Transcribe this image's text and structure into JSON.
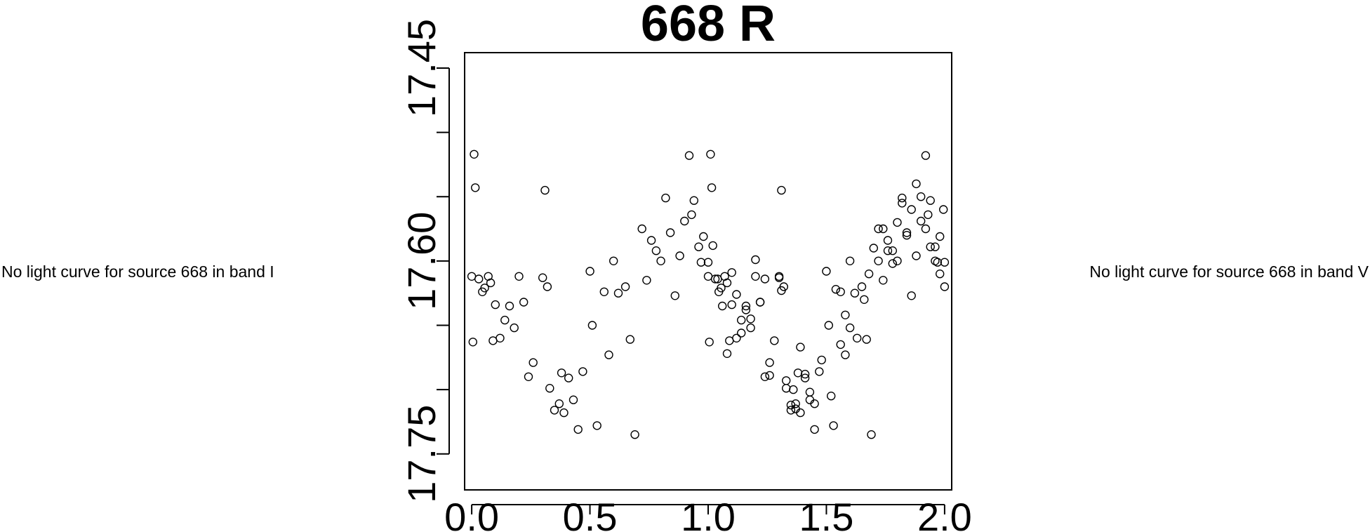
{
  "panels": {
    "left_message": "No light curve for source 668 in band I",
    "right_message": "No light curve for source 668 in band V"
  },
  "chart_data": {
    "type": "scatter",
    "title": "668 R",
    "xlabel": "",
    "ylabel": "",
    "xlim": [
      -0.03,
      2.03
    ],
    "ylim": [
      17.778,
      17.438
    ],
    "y_inverted": true,
    "grid": false,
    "legend": "none",
    "marker": "open-circle",
    "x_ticks": [
      0.0,
      0.5,
      1.0,
      1.5,
      2.0
    ],
    "x_tick_labels": [
      "0.0",
      "0.5",
      "1.0",
      "1.5",
      "2.0"
    ],
    "y_ticks": [
      17.45,
      17.5,
      17.55,
      17.6,
      17.65,
      17.7,
      17.75
    ],
    "y_tick_labels": [
      "17.45",
      "",
      "",
      "17.60",
      "",
      "",
      "17.75"
    ],
    "base_points": [
      [
        0.0,
        17.612
      ],
      [
        0.005,
        17.663
      ],
      [
        0.01,
        17.517
      ],
      [
        0.015,
        17.543
      ],
      [
        0.03,
        17.614
      ],
      [
        0.045,
        17.624
      ],
      [
        0.055,
        17.621
      ],
      [
        0.07,
        17.612
      ],
      [
        0.08,
        17.617
      ],
      [
        0.09,
        17.662
      ],
      [
        0.1,
        17.634
      ],
      [
        0.12,
        17.66
      ],
      [
        0.14,
        17.646
      ],
      [
        0.16,
        17.635
      ],
      [
        0.18,
        17.652
      ],
      [
        0.2,
        17.612
      ],
      [
        0.22,
        17.632
      ],
      [
        0.24,
        17.69
      ],
      [
        0.26,
        17.679
      ],
      [
        0.3,
        17.613
      ],
      [
        0.31,
        17.545
      ],
      [
        0.32,
        17.62
      ],
      [
        0.33,
        17.699
      ],
      [
        0.35,
        17.716
      ],
      [
        0.37,
        17.711
      ],
      [
        0.38,
        17.687
      ],
      [
        0.39,
        17.718
      ],
      [
        0.41,
        17.691
      ],
      [
        0.43,
        17.708
      ],
      [
        0.45,
        17.731
      ],
      [
        0.47,
        17.686
      ],
      [
        0.5,
        17.608
      ],
      [
        0.51,
        17.65
      ],
      [
        0.53,
        17.728
      ],
      [
        0.56,
        17.624
      ],
      [
        0.58,
        17.673
      ],
      [
        0.6,
        17.6
      ],
      [
        0.62,
        17.625
      ],
      [
        0.65,
        17.62
      ],
      [
        0.67,
        17.661
      ],
      [
        0.69,
        17.735
      ],
      [
        0.72,
        17.575
      ],
      [
        0.74,
        17.615
      ],
      [
        0.76,
        17.584
      ],
      [
        0.78,
        17.592
      ],
      [
        0.8,
        17.6
      ],
      [
        0.82,
        17.551
      ],
      [
        0.84,
        17.578
      ],
      [
        0.86,
        17.627
      ],
      [
        0.88,
        17.596
      ],
      [
        0.9,
        17.569
      ],
      [
        0.92,
        17.518
      ],
      [
        0.93,
        17.564
      ],
      [
        0.94,
        17.553
      ],
      [
        0.96,
        17.589
      ],
      [
        0.97,
        17.601
      ],
      [
        0.98,
        17.581
      ],
      [
        1.0,
        17.601
      ],
      [
        1.02,
        17.588
      ],
      [
        1.04,
        17.614
      ],
      [
        1.06,
        17.635
      ],
      [
        1.08,
        17.672
      ],
      [
        1.1,
        17.609
      ],
      [
        1.12,
        17.626
      ],
      [
        1.14,
        17.656
      ],
      [
        1.16,
        17.638
      ],
      [
        1.18,
        17.645
      ],
      [
        1.2,
        17.599
      ],
      [
        1.22,
        17.632
      ],
      [
        1.24,
        17.614
      ],
      [
        1.26,
        17.689
      ],
      [
        1.28,
        17.662
      ],
      [
        1.3,
        17.612
      ],
      [
        1.31,
        17.623
      ],
      [
        1.33,
        17.693
      ],
      [
        1.35,
        17.712
      ],
      [
        1.36,
        17.7
      ],
      [
        1.37,
        17.715
      ],
      [
        1.39,
        17.667
      ],
      [
        1.41,
        17.688
      ],
      [
        1.43,
        17.702
      ],
      [
        1.45,
        17.711
      ],
      [
        1.48,
        17.677
      ],
      [
        1.52,
        17.705
      ],
      [
        1.54,
        17.622
      ],
      [
        1.56,
        17.665
      ],
      [
        1.58,
        17.642
      ],
      [
        1.6,
        17.652
      ],
      [
        1.63,
        17.66
      ],
      [
        1.66,
        17.63
      ],
      [
        1.68,
        17.61
      ],
      [
        1.7,
        17.59
      ],
      [
        1.72,
        17.6
      ],
      [
        1.74,
        17.575
      ],
      [
        1.76,
        17.592
      ],
      [
        1.78,
        17.602
      ],
      [
        1.8,
        17.57
      ],
      [
        1.82,
        17.555
      ],
      [
        1.84,
        17.58
      ],
      [
        1.86,
        17.56
      ],
      [
        1.88,
        17.54
      ],
      [
        1.9,
        17.55
      ],
      [
        1.92,
        17.575
      ],
      [
        1.94,
        17.589
      ],
      [
        1.96,
        17.6
      ],
      [
        1.98,
        17.61
      ],
      [
        1.995,
        17.56
      ],
      [
        2.0,
        17.62
      ]
    ],
    "points_note": "Each base point (x,y) is plotted twice: at x and at x+1 (phase folded over two cycles)."
  }
}
